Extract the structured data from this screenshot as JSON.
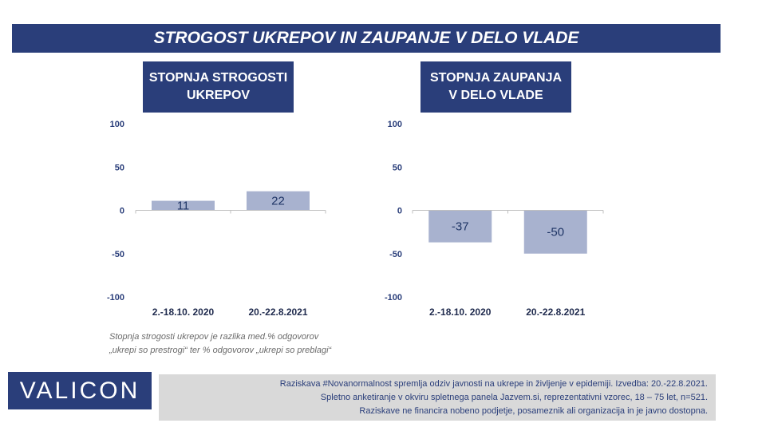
{
  "title": "STROGOST UKREPOV IN ZAUPANJE V DELO VLADE",
  "chart_data": [
    {
      "type": "bar",
      "title_lines": [
        "STOPNJA STROGOSTI",
        "UKREPOV"
      ],
      "categories": [
        "2.-18.10. 2020",
        "20.-22.8.2021"
      ],
      "values": [
        11,
        22
      ],
      "value_labels": [
        "11",
        "22"
      ],
      "ylim": [
        -100,
        100
      ],
      "yticks": [
        100,
        50,
        0,
        -50,
        -100
      ],
      "ytick_labels": [
        "100",
        "50",
        "0",
        "-50",
        "-100"
      ],
      "bar_color": "#a8b2cf"
    },
    {
      "type": "bar",
      "title_lines": [
        "STOPNJA ZAUPANJA",
        "V DELO VLADE"
      ],
      "categories": [
        "2.-18.10. 2020",
        "20.-22.8.2021"
      ],
      "values": [
        -37,
        -50
      ],
      "value_labels": [
        "-37",
        "-50"
      ],
      "ylim": [
        -100,
        100
      ],
      "yticks": [
        100,
        50,
        0,
        -50,
        -100
      ],
      "ytick_labels": [
        "100",
        "50",
        "0",
        "-50",
        "-100"
      ],
      "bar_color": "#a8b2cf"
    }
  ],
  "note": [
    "Stopnja strogosti ukrepov je razlika med.% odgovorov",
    "„ukrepi so prestrogi“ ter % odgovorov „ukrepi so preblagi“"
  ],
  "logo": "VALICON",
  "footer": [
    "Raziskava #Novanormalnost spremlja odziv javnosti na ukrepe in življenje v epidemiji. Izvedba: 20.-22.8.2021.",
    "Spletno anketiranje v okviru spletnega panela Jazvem.si, reprezentativni vzorec, 18 – 75 let, n=521.",
    "Raziskave ne financira nobeno podjetje, posameznik ali organizacija in je javno dostopna."
  ]
}
